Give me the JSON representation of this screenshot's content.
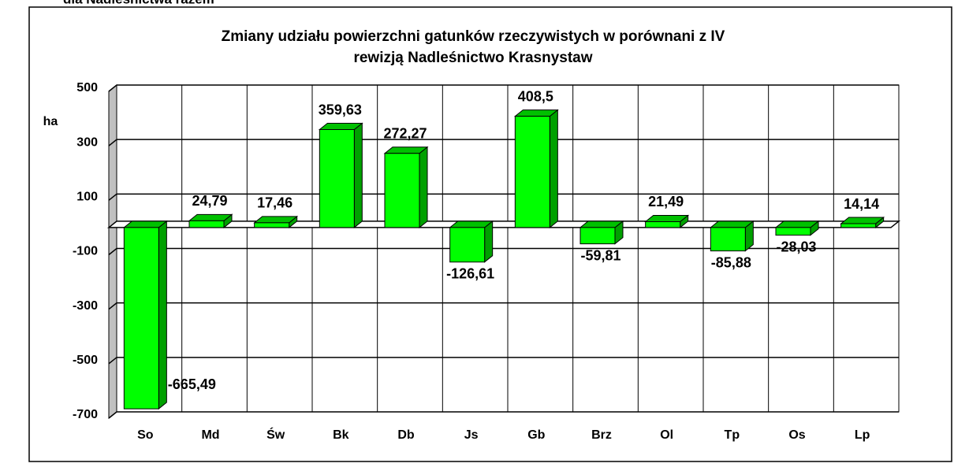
{
  "heading": "dla Nadleśnictwa razem",
  "chart_data": {
    "type": "bar",
    "title": [
      "Zmiany udziału powierzchni gatunków  rzeczywistych w porównani z IV",
      "rewizją Nadleśnictwo Krasnystaw"
    ],
    "y_label": "ha",
    "categories": [
      "So",
      "Md",
      "Św",
      "Bk",
      "Db",
      "Js",
      "Gb",
      "Brz",
      "Ol",
      "Tp",
      "Os",
      "Lp"
    ],
    "values": [
      -665.49,
      24.79,
      17.46,
      359.63,
      272.27,
      -126.61,
      408.5,
      -59.81,
      21.49,
      -85.88,
      -28.03,
      14.14
    ],
    "value_labels": [
      "-665,49",
      "24,79",
      "17,46",
      "359,63",
      "272,27",
      "-126,61",
      "408,5",
      "-59,81",
      "21,49",
      "-85,88",
      "-28,03",
      "14,14"
    ],
    "color": "#00ff00",
    "ylim": [
      -700,
      500
    ],
    "yticks": [
      500,
      300,
      100,
      -100,
      -300,
      -500,
      -700
    ],
    "grid": true
  }
}
